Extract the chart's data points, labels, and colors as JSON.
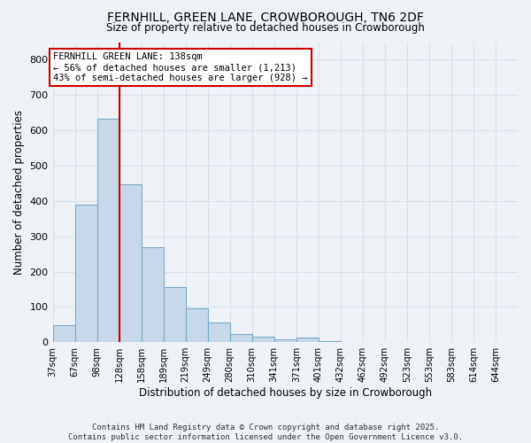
{
  "title": "FERNHILL, GREEN LANE, CROWBOROUGH, TN6 2DF",
  "subtitle": "Size of property relative to detached houses in Crowborough",
  "xlabel": "Distribution of detached houses by size in Crowborough",
  "ylabel": "Number of detached properties",
  "bin_labels": [
    "37sqm",
    "67sqm",
    "98sqm",
    "128sqm",
    "158sqm",
    "189sqm",
    "219sqm",
    "249sqm",
    "280sqm",
    "310sqm",
    "341sqm",
    "371sqm",
    "401sqm",
    "432sqm",
    "462sqm",
    "492sqm",
    "523sqm",
    "553sqm",
    "583sqm",
    "614sqm",
    "644sqm"
  ],
  "values": [
    47,
    390,
    632,
    448,
    268,
    155,
    95,
    55,
    22,
    15,
    8,
    13,
    2,
    0,
    0,
    0,
    0,
    0,
    0,
    0
  ],
  "bar_color": "#c8d8e8",
  "bar_edge_color": "#7aaac8",
  "red_line_x": 3,
  "annotation_text": "FERNHILL GREEN LANE: 138sqm\n← 56% of detached houses are smaller (1,213)\n43% of semi-detached houses are larger (928) →",
  "annotation_box_color": "#ffffff",
  "annotation_border_color": "#cc0000",
  "red_line_color": "#cc0000",
  "background_color": "#eef2f7",
  "grid_color": "#d8e0ea",
  "footer_line1": "Contains HM Land Registry data © Crown copyright and database right 2025.",
  "footer_line2": "Contains public sector information licensed under the Open Government Licence v3.0.",
  "ylim": [
    0,
    850
  ],
  "yticks": [
    0,
    100,
    200,
    300,
    400,
    500,
    600,
    700,
    800
  ]
}
